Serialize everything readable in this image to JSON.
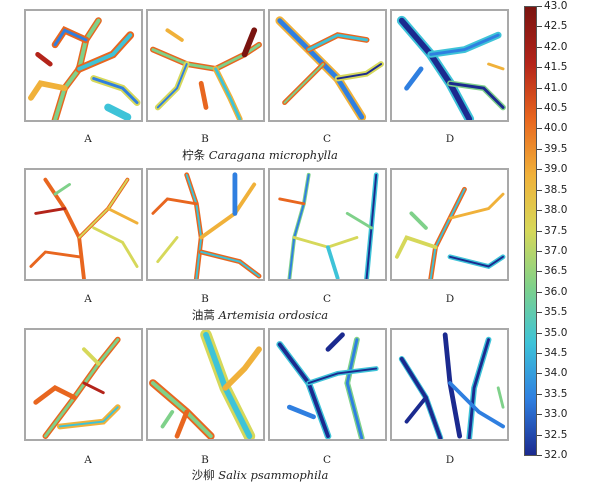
{
  "colorbar": {
    "min": 32.0,
    "max": 43.0,
    "ticks": [
      "43.0",
      "42.5",
      "42.0",
      "41.5",
      "41.0",
      "40.5",
      "40.0",
      "39.5",
      "39.0",
      "38.5",
      "38.0",
      "37.5",
      "37.0",
      "36.5",
      "36.0",
      "35.5",
      "35.0",
      "34.5",
      "34.0",
      "33.5",
      "33.0",
      "32.5",
      "32.0"
    ],
    "colors": [
      "#1b2a8f",
      "#2f7fe0",
      "#3ec3d8",
      "#7fd18a",
      "#d6d85a",
      "#f0b13a",
      "#e8661f",
      "#b3241a",
      "#7a1410"
    ]
  },
  "rows": [
    {
      "caption_cn": "柠条",
      "caption_latin": "Caragana microphylla",
      "panels": [
        {
          "label": "A",
          "dominant": "mixed"
        },
        {
          "label": "B",
          "dominant": "warm-edges"
        },
        {
          "label": "C",
          "dominant": "mixed"
        },
        {
          "label": "D",
          "dominant": "cool"
        }
      ]
    },
    {
      "caption_cn": "油蒿",
      "caption_latin": "Artemisia ordosica",
      "panels": [
        {
          "label": "A",
          "dominant": "warm"
        },
        {
          "label": "B",
          "dominant": "mixed"
        },
        {
          "label": "C",
          "dominant": "mixed-cool"
        },
        {
          "label": "D",
          "dominant": "mixed"
        }
      ]
    },
    {
      "caption_cn": "沙柳",
      "caption_latin": "Salix psammophila",
      "panels": [
        {
          "label": "A",
          "dominant": "warm"
        },
        {
          "label": "B",
          "dominant": "mixed"
        },
        {
          "label": "C",
          "dominant": "cool"
        },
        {
          "label": "D",
          "dominant": "cool"
        }
      ]
    }
  ]
}
